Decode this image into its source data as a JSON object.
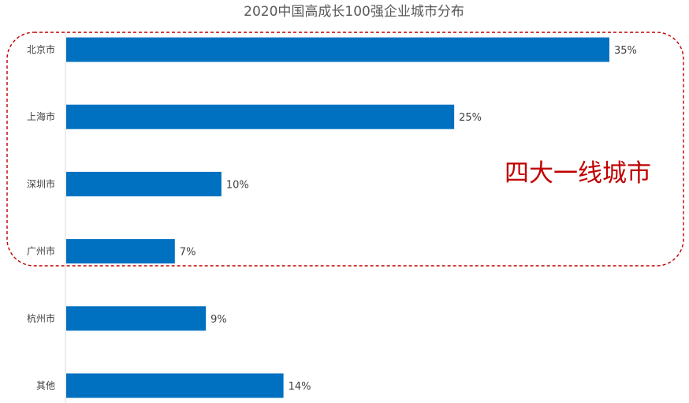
{
  "chart_data": {
    "type": "bar",
    "orientation": "horizontal",
    "title": "2020中国高成长100强企业城市分布",
    "categories": [
      "北京市",
      "上海市",
      "深圳市",
      "广州市",
      "杭州市",
      "其他"
    ],
    "values": [
      35,
      25,
      10,
      7,
      9,
      14
    ],
    "value_labels": [
      "35%",
      "25%",
      "10%",
      "7%",
      "9%",
      "14%"
    ],
    "unit": "%",
    "xlim": [
      0,
      35
    ],
    "grid": false,
    "legend": "none",
    "bar_color": "#0070c0",
    "annotation": {
      "text": "四大一线城市",
      "color": "#c00000",
      "highlights_categories": [
        "北京市",
        "上海市",
        "深圳市",
        "广州市"
      ],
      "style": "dashed rounded box"
    }
  }
}
